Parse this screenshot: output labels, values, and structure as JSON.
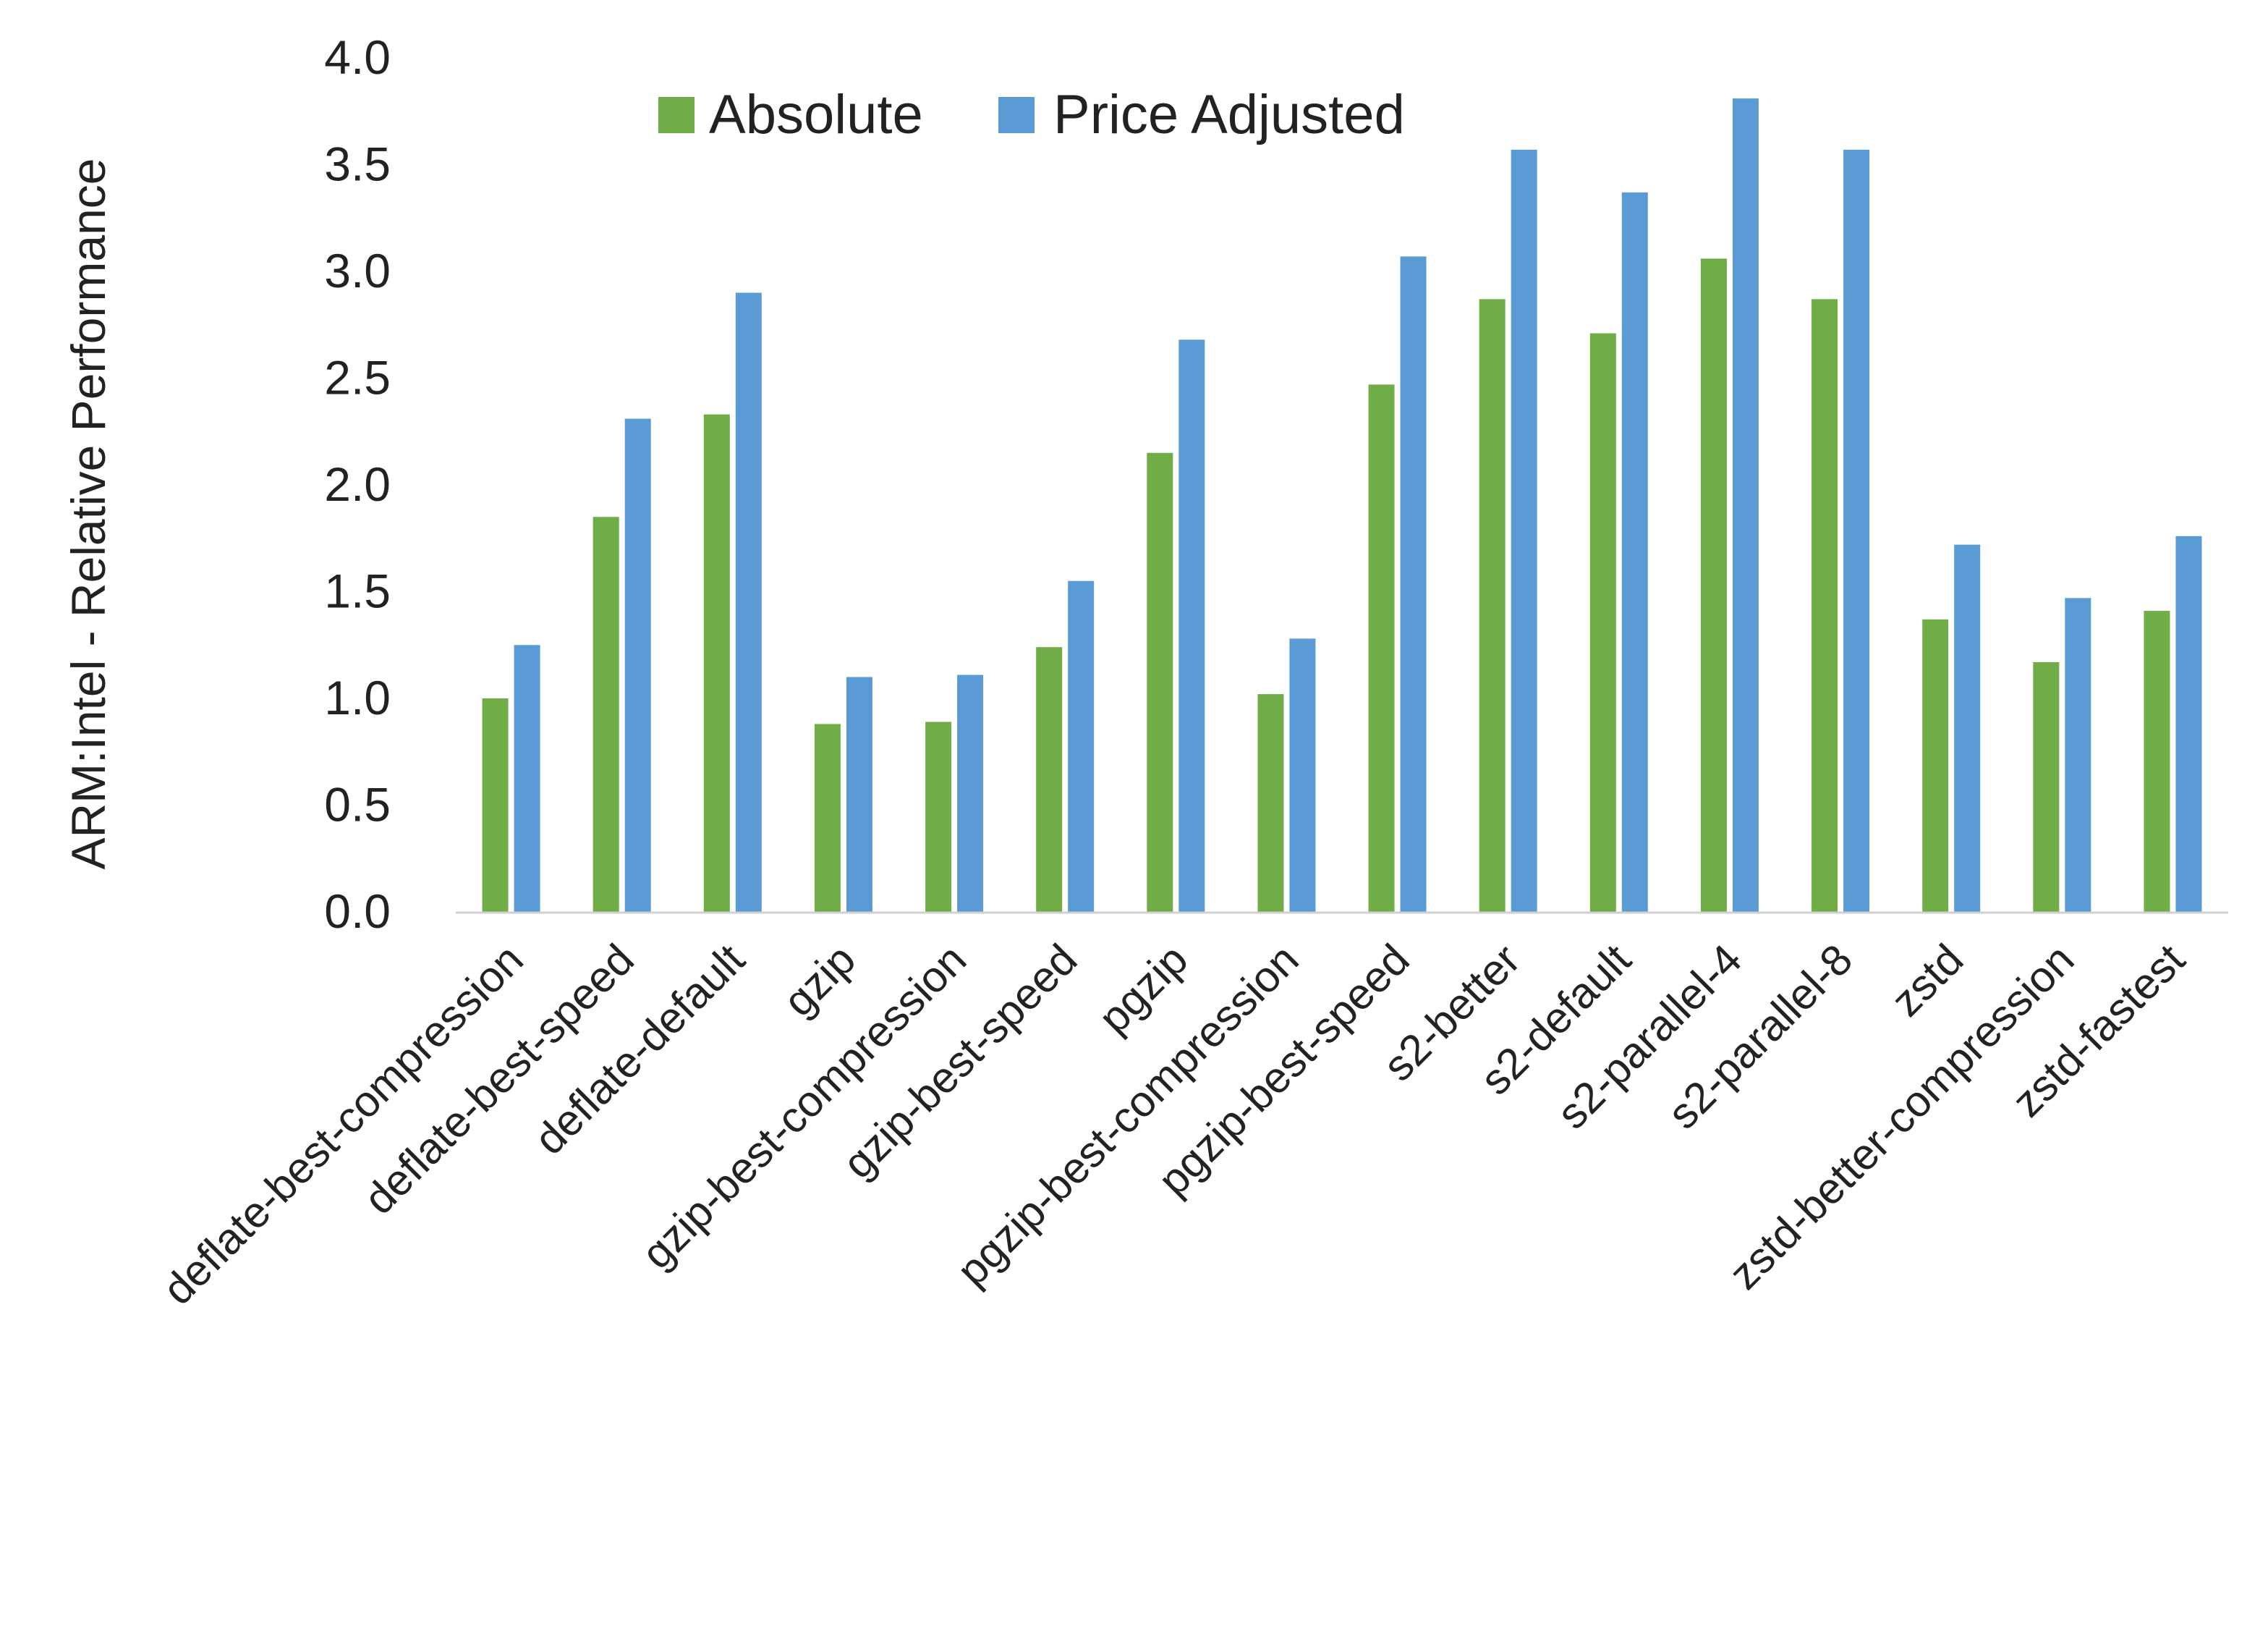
{
  "chart_data": {
    "type": "bar",
    "title": "",
    "xlabel": "",
    "ylabel": "ARM:Intel - Relative Performance",
    "ylim": [
      0,
      4.0
    ],
    "yticks": [
      "0.0",
      "0.5",
      "1.0",
      "1.5",
      "2.0",
      "2.5",
      "3.0",
      "3.5",
      "4.0"
    ],
    "grid": false,
    "legend": "top-center",
    "categories": [
      "deflate-best-compression",
      "deflate-best-speed",
      "deflate-default",
      "gzip",
      "gzip-best-compression",
      "gzip-best-speed",
      "pgzip",
      "pgzip-best-compression",
      "pgzip-best-speed",
      "s2-better",
      "s2-default",
      "s2-parallel-4",
      "s2-parallel-8",
      "zstd",
      "zstd-better-compression",
      "zstd-fastest"
    ],
    "series": [
      {
        "name": "Absolute",
        "color": "#70AD47",
        "values": [
          1.0,
          1.85,
          2.33,
          0.88,
          0.89,
          1.24,
          2.15,
          1.02,
          2.47,
          2.87,
          2.71,
          3.06,
          2.87,
          1.37,
          1.17,
          1.41
        ]
      },
      {
        "name": "Price Adjusted",
        "color": "#5B9BD5",
        "values": [
          1.25,
          2.31,
          2.9,
          1.1,
          1.11,
          1.55,
          2.68,
          1.28,
          3.07,
          3.57,
          3.37,
          3.81,
          3.57,
          1.72,
          1.47,
          1.76
        ]
      }
    ]
  }
}
